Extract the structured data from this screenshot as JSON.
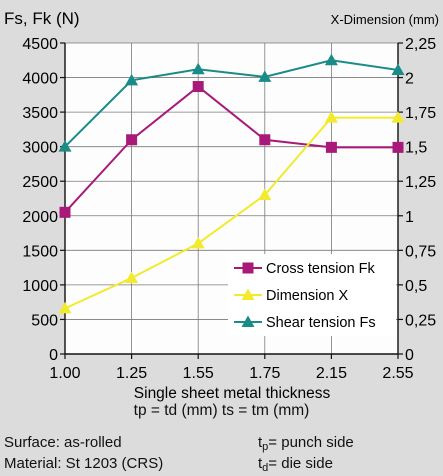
{
  "chart_data": {
    "type": "line",
    "title": "",
    "ylabel_left": "Fs, Fk (N)",
    "ylabel_right": "X-Dimension (mm)",
    "xlabel": "Single sheet metal thickness",
    "xlabel_line2": "tp = td (mm) ts = tm (mm)",
    "categories": [
      "1.00",
      "1.25",
      "1.55",
      "1.75",
      "2.15",
      "2.55"
    ],
    "ylim_left": [
      0,
      4500
    ],
    "yticks_left": [
      "0",
      "500",
      "1000",
      "1500",
      "2000",
      "2500",
      "3000",
      "3500",
      "4000",
      "4500"
    ],
    "ylim_right": [
      0,
      2.25
    ],
    "yticks_right": [
      "0",
      "0,25",
      "0,5",
      "0,75",
      "1",
      "1,25",
      "1,5",
      "1,75",
      "2",
      "2,25"
    ],
    "grid": true,
    "legend_position": "lower-right",
    "series": [
      {
        "name": "Cross tension Fk",
        "axis": "left",
        "color": "#a8197a",
        "marker": "square",
        "values": [
          2050,
          3100,
          3870,
          3100,
          2990,
          2990
        ]
      },
      {
        "name": "Dimension X",
        "axis": "right",
        "color": "#f2ea2a",
        "marker": "triangle",
        "values": [
          0.33,
          0.55,
          0.8,
          1.15,
          1.71,
          1.71
        ]
      },
      {
        "name": "Shear tension Fs",
        "axis": "left",
        "color": "#1a8c88",
        "marker": "triangle",
        "values": [
          3000,
          3960,
          4120,
          4010,
          4250,
          4110
        ]
      }
    ]
  },
  "footer": {
    "surface": "Surface: as-rolled",
    "material": "Material: St 1203 (CRS)",
    "tp_letter": "t",
    "tp_sub": "p",
    "tp_text": "= punch side",
    "td_letter": "t",
    "td_sub": "d",
    "td_text": "= die side"
  }
}
